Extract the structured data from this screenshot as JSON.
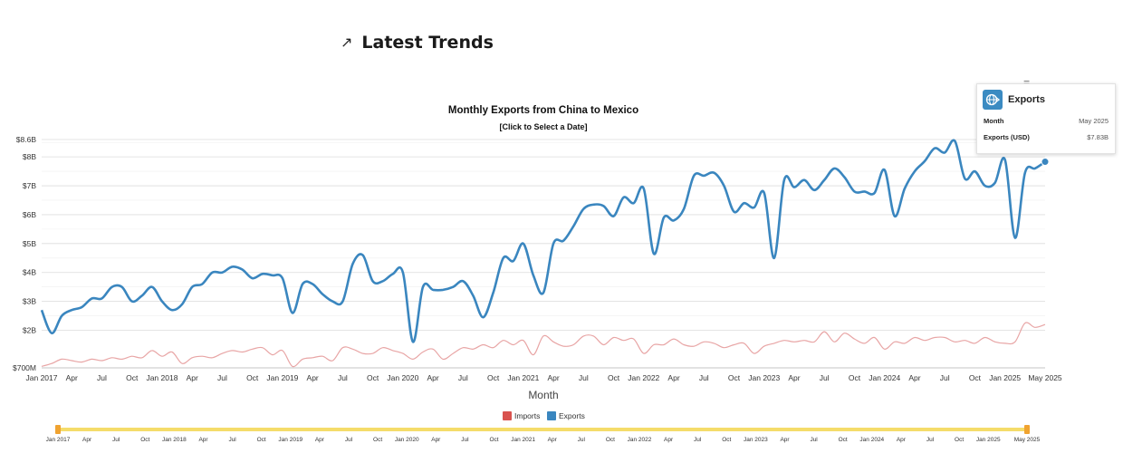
{
  "header": {
    "title": "Latest Trends",
    "icon": "trending-up-icon"
  },
  "tooltip": {
    "title": "Exports",
    "rows": [
      {
        "label": "Month",
        "value": "May 2025"
      },
      {
        "label": "Exports (USD)",
        "value": "$7.83B"
      }
    ]
  },
  "chart_data": {
    "type": "line",
    "title": "Monthly Exports from China to Mexico",
    "subtitle": "[Click to Select a Date]",
    "xlabel": "Month",
    "ylabel": "",
    "ylim": [
      0.7,
      8.6
    ],
    "yticks": [
      {
        "v": 0.7,
        "label": "$700M"
      },
      {
        "v": 2,
        "label": "$2B"
      },
      {
        "v": 3,
        "label": "$3B"
      },
      {
        "v": 4,
        "label": "$4B"
      },
      {
        "v": 5,
        "label": "$5B"
      },
      {
        "v": 6,
        "label": "$6B"
      },
      {
        "v": 7,
        "label": "$7B"
      },
      {
        "v": 8,
        "label": "$8B"
      },
      {
        "v": 8.6,
        "label": "$8.6B"
      }
    ],
    "xticks": [
      {
        "i": 0,
        "label": "Jan 2017"
      },
      {
        "i": 3,
        "label": "Apr"
      },
      {
        "i": 6,
        "label": "Jul"
      },
      {
        "i": 9,
        "label": "Oct"
      },
      {
        "i": 12,
        "label": "Jan 2018"
      },
      {
        "i": 15,
        "label": "Apr"
      },
      {
        "i": 18,
        "label": "Jul"
      },
      {
        "i": 21,
        "label": "Oct"
      },
      {
        "i": 24,
        "label": "Jan 2019"
      },
      {
        "i": 27,
        "label": "Apr"
      },
      {
        "i": 30,
        "label": "Jul"
      },
      {
        "i": 33,
        "label": "Oct"
      },
      {
        "i": 36,
        "label": "Jan 2020"
      },
      {
        "i": 39,
        "label": "Apr"
      },
      {
        "i": 42,
        "label": "Jul"
      },
      {
        "i": 45,
        "label": "Oct"
      },
      {
        "i": 48,
        "label": "Jan 2021"
      },
      {
        "i": 51,
        "label": "Apr"
      },
      {
        "i": 54,
        "label": "Jul"
      },
      {
        "i": 57,
        "label": "Oct"
      },
      {
        "i": 60,
        "label": "Jan 2022"
      },
      {
        "i": 63,
        "label": "Apr"
      },
      {
        "i": 66,
        "label": "Jul"
      },
      {
        "i": 69,
        "label": "Oct"
      },
      {
        "i": 72,
        "label": "Jan 2023"
      },
      {
        "i": 75,
        "label": "Apr"
      },
      {
        "i": 78,
        "label": "Jul"
      },
      {
        "i": 81,
        "label": "Oct"
      },
      {
        "i": 84,
        "label": "Jan 2024"
      },
      {
        "i": 87,
        "label": "Apr"
      },
      {
        "i": 90,
        "label": "Jul"
      },
      {
        "i": 93,
        "label": "Oct"
      },
      {
        "i": 96,
        "label": "Jan 2025"
      },
      {
        "i": 100,
        "label": "May 2025"
      }
    ],
    "legend": [
      "Imports",
      "Exports"
    ],
    "legend_position": "bottom",
    "highlight": {
      "index": 100,
      "label": "May 2025",
      "value": 7.83
    },
    "series": [
      {
        "name": "Exports",
        "color": "#3a86bf",
        "values": [
          2.7,
          1.9,
          2.5,
          2.7,
          2.8,
          3.1,
          3.1,
          3.5,
          3.5,
          3.0,
          3.2,
          3.5,
          3.0,
          2.7,
          2.9,
          3.5,
          3.6,
          4.0,
          4.0,
          4.2,
          4.1,
          3.8,
          3.95,
          3.9,
          3.8,
          2.6,
          3.6,
          3.6,
          3.25,
          3.0,
          3.0,
          4.3,
          4.6,
          3.7,
          3.7,
          3.95,
          4.0,
          1.6,
          3.5,
          3.4,
          3.4,
          3.5,
          3.7,
          3.2,
          2.45,
          3.3,
          4.5,
          4.4,
          5.0,
          3.9,
          3.3,
          5.0,
          5.1,
          5.6,
          6.2,
          6.35,
          6.3,
          5.95,
          6.6,
          6.4,
          6.9,
          4.65,
          5.9,
          5.8,
          6.2,
          7.35,
          7.35,
          7.45,
          7.0,
          6.1,
          6.4,
          6.25,
          6.75,
          4.5,
          7.2,
          6.95,
          7.2,
          6.85,
          7.2,
          7.6,
          7.3,
          6.8,
          6.8,
          6.75,
          7.55,
          5.95,
          6.9,
          7.5,
          7.85,
          8.3,
          8.15,
          8.55,
          7.25,
          7.5,
          7.0,
          7.1,
          7.9,
          5.2,
          7.45,
          7.6,
          7.83
        ]
      },
      {
        "name": "Imports",
        "color": "#e8a5a5",
        "values": [
          0.75,
          0.85,
          1.0,
          0.95,
          0.9,
          1.0,
          0.95,
          1.05,
          1.0,
          1.1,
          1.05,
          1.3,
          1.1,
          1.25,
          0.85,
          1.05,
          1.1,
          1.05,
          1.2,
          1.3,
          1.25,
          1.35,
          1.4,
          1.15,
          1.3,
          0.75,
          1.0,
          1.05,
          1.1,
          0.95,
          1.4,
          1.35,
          1.2,
          1.2,
          1.4,
          1.3,
          1.2,
          1.0,
          1.25,
          1.35,
          1.0,
          1.2,
          1.4,
          1.35,
          1.5,
          1.4,
          1.65,
          1.5,
          1.65,
          1.15,
          1.8,
          1.6,
          1.45,
          1.5,
          1.8,
          1.8,
          1.5,
          1.75,
          1.65,
          1.7,
          1.2,
          1.5,
          1.5,
          1.7,
          1.5,
          1.45,
          1.6,
          1.55,
          1.4,
          1.5,
          1.55,
          1.2,
          1.45,
          1.55,
          1.65,
          1.6,
          1.65,
          1.6,
          1.95,
          1.6,
          1.9,
          1.7,
          1.55,
          1.75,
          1.35,
          1.6,
          1.55,
          1.75,
          1.65,
          1.75,
          1.75,
          1.6,
          1.65,
          1.55,
          1.75,
          1.6,
          1.55,
          1.6,
          2.25,
          2.1,
          2.2
        ]
      }
    ]
  }
}
